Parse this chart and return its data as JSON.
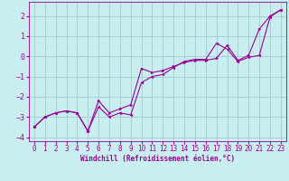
{
  "xlabel": "Windchill (Refroidissement éolien,°C)",
  "bg_color": "#c8eef0",
  "grid_color": "#a0c8d0",
  "line_color": "#990099",
  "xlim": [
    -0.5,
    23.5
  ],
  "ylim": [
    -4.2,
    2.7
  ],
  "yticks": [
    -4,
    -3,
    -2,
    -1,
    0,
    1,
    2
  ],
  "xticks": [
    0,
    1,
    2,
    3,
    4,
    5,
    6,
    7,
    8,
    9,
    10,
    11,
    12,
    13,
    14,
    15,
    16,
    17,
    18,
    19,
    20,
    21,
    22,
    23
  ],
  "line1_x": [
    0,
    1,
    2,
    3,
    4,
    5,
    6,
    7,
    8,
    9,
    10,
    11,
    12,
    13,
    14,
    15,
    16,
    17,
    18,
    19,
    20,
    21,
    22,
    23
  ],
  "line1_y": [
    -3.5,
    -3.0,
    -2.8,
    -2.7,
    -2.8,
    -3.7,
    -2.2,
    -2.8,
    -2.6,
    -2.4,
    -0.6,
    -0.8,
    -0.7,
    -0.5,
    -0.3,
    -0.2,
    -0.2,
    -0.1,
    0.55,
    -0.2,
    0.05,
    1.35,
    2.0,
    2.3
  ],
  "line2_x": [
    0,
    1,
    2,
    3,
    4,
    5,
    6,
    7,
    8,
    9,
    10,
    11,
    12,
    13,
    14,
    15,
    16,
    17,
    18,
    19,
    20,
    21,
    22,
    23
  ],
  "line2_y": [
    -3.5,
    -3.0,
    -2.8,
    -2.7,
    -2.8,
    -3.7,
    -2.5,
    -3.0,
    -2.8,
    -2.9,
    -1.3,
    -1.0,
    -0.9,
    -0.55,
    -0.25,
    -0.15,
    -0.15,
    0.65,
    0.35,
    -0.25,
    -0.05,
    0.05,
    1.95,
    2.3
  ],
  "tick_fontsize": 5.5,
  "xlabel_fontsize": 5.5
}
